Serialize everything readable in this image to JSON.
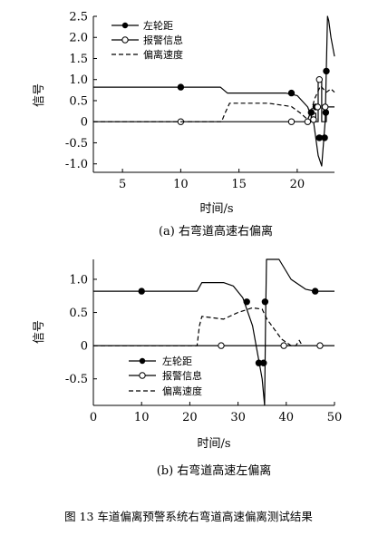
{
  "chart_data": [
    {
      "type": "line",
      "caption": "(a)  右弯道高速右偏离",
      "xlabel": "时间/s",
      "ylabel": "信号",
      "xlim": [
        2.5,
        23.2
      ],
      "ylim": [
        -1.2,
        2.5
      ],
      "xticks": [
        5,
        10,
        15,
        20
      ],
      "yticks": [
        -1.0,
        -0.5,
        0,
        0.5,
        1.0,
        1.5,
        2.0,
        2.5
      ],
      "ytick_labels": [
        "-1.0",
        "-0.5",
        "0",
        "0.5",
        "1.0",
        "1.5",
        "2.0",
        "2.5"
      ],
      "legend": {
        "placement": "top-left",
        "entries": [
          "左轮距",
          "报警信息",
          "偏离速度"
        ]
      },
      "series": [
        {
          "name": "左轮距",
          "style": "solid-filled-marker",
          "x": [
            2.5,
            13.4,
            14.0,
            19.0,
            20.0,
            20.9,
            21.4,
            21.8,
            22.1,
            22.4,
            22.6,
            22.7,
            22.9,
            23.1,
            23.3
          ],
          "y": [
            0.82,
            0.82,
            0.68,
            0.68,
            0.62,
            0.35,
            0.0,
            -0.8,
            -1.05,
            0.0,
            2.5,
            2.4,
            2.0,
            1.7,
            1.55
          ],
          "markers": [
            [
              10,
              0.82
            ],
            [
              19.5,
              0.68
            ],
            [
              21.2,
              0.22
            ],
            [
              21.6,
              0.35
            ],
            [
              21.9,
              -0.38
            ],
            [
              22.35,
              -0.38
            ],
            [
              22.45,
              0.22
            ],
            [
              22.5,
              1.2
            ]
          ]
        },
        {
          "name": "报警信息",
          "style": "solid-open-marker",
          "x": [
            2.5,
            21.2,
            21.2,
            21.6,
            21.6,
            21.8,
            21.8,
            22.1,
            22.1,
            22.5,
            22.5,
            23.3
          ],
          "y": [
            0,
            0,
            0.2,
            0.2,
            0.0,
            0.0,
            1.0,
            1.0,
            0.0,
            0.0,
            0.35,
            0.35
          ],
          "markers": [
            [
              10,
              0
            ],
            [
              19.5,
              0
            ],
            [
              20.9,
              0
            ],
            [
              21.4,
              0.05
            ],
            [
              21.75,
              0.35
            ],
            [
              21.9,
              1.0
            ],
            [
              22.4,
              0.35
            ]
          ]
        },
        {
          "name": "偏离速度",
          "style": "dashed",
          "x": [
            2.5,
            13.5,
            13.8,
            14.2,
            17.5,
            19.5,
            20.3,
            20.9,
            21.2,
            21.5,
            22.0,
            22.5,
            22.9,
            23.3
          ],
          "y": [
            0,
            0,
            0.2,
            0.44,
            0.44,
            0.36,
            0.2,
            0.05,
            0.25,
            0.55,
            0.85,
            0.7,
            0.78,
            0.7
          ]
        }
      ]
    },
    {
      "type": "line",
      "caption": "(b)  右弯道高速左偏离",
      "xlabel": "时间/s",
      "ylabel": "信号",
      "xlim": [
        0,
        50
      ],
      "ylim": [
        -0.9,
        1.3
      ],
      "xticks": [
        0,
        10,
        20,
        30,
        40,
        50
      ],
      "yticks": [
        -0.5,
        0,
        0.5,
        1.0
      ],
      "ytick_labels": [
        "-0.5",
        "0",
        "0.5",
        "1.0"
      ],
      "legend": {
        "placement": "bottom-center",
        "entries": [
          "左轮距",
          "报警信息",
          "偏离速度"
        ]
      },
      "series": [
        {
          "name": "左轮距",
          "style": "solid-filled-marker",
          "x": [
            0,
            21.5,
            22.5,
            27,
            29,
            31,
            33,
            35,
            35.5,
            35.7,
            35.9,
            38.5,
            41,
            44,
            46,
            50
          ],
          "y": [
            0.82,
            0.82,
            0.95,
            0.95,
            0.9,
            0.72,
            0.3,
            -0.5,
            -0.9,
            0.3,
            1.3,
            1.3,
            1.0,
            0.85,
            0.82,
            0.82
          ],
          "markers": [
            [
              10,
              0.82
            ],
            [
              31.8,
              0.66
            ],
            [
              34.3,
              -0.26
            ],
            [
              35.3,
              -0.26
            ],
            [
              35.6,
              0.66
            ],
            [
              46,
              0.82
            ]
          ]
        },
        {
          "name": "报警信息",
          "style": "solid-open-marker",
          "x": [
            0,
            50
          ],
          "y": [
            0,
            0
          ],
          "markers": [
            [
              26.5,
              0
            ],
            [
              39.5,
              0
            ],
            [
              47,
              0
            ]
          ]
        },
        {
          "name": "偏离速度",
          "style": "dashed",
          "x": [
            0,
            21.5,
            22.0,
            22.5,
            27,
            30,
            33,
            35,
            36,
            39,
            41,
            42,
            42.7,
            43.3
          ],
          "y": [
            0,
            0,
            0.3,
            0.44,
            0.4,
            0.5,
            0.57,
            0.55,
            0.4,
            0.1,
            0.0,
            0.0,
            0.08,
            0.0
          ]
        }
      ]
    }
  ],
  "figure_caption": "图 13    车道偏离预警系统右弯道高速偏离测试结果",
  "colors": {
    "ink": "#000000",
    "background": "#ffffff"
  }
}
